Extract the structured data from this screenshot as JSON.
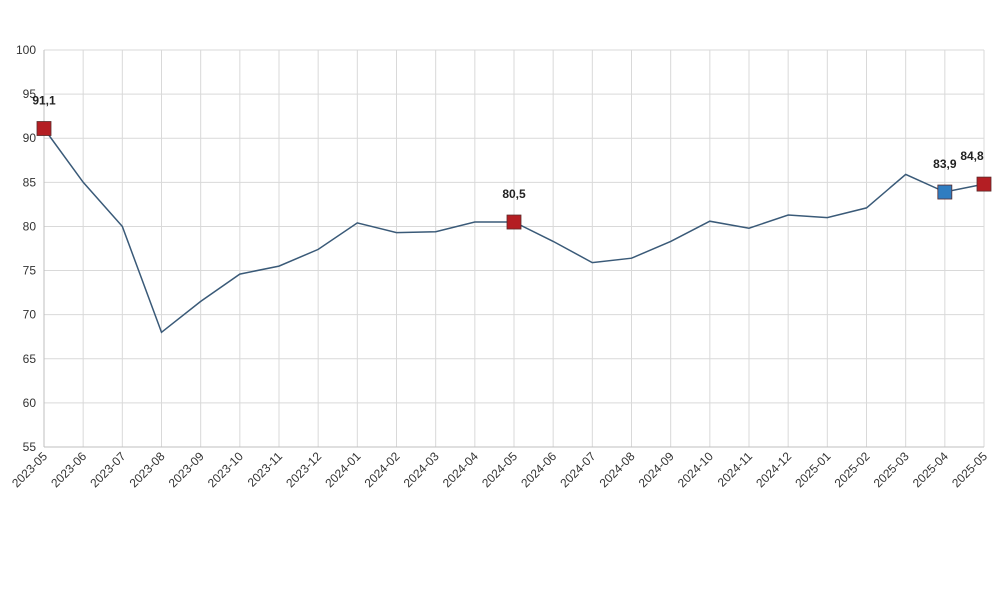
{
  "chart_data": {
    "type": "line",
    "title": "",
    "xlabel": "",
    "ylabel": "",
    "ylim": [
      55,
      100
    ],
    "yticks": [
      55,
      60,
      65,
      70,
      75,
      80,
      85,
      90,
      95,
      100
    ],
    "grid": true,
    "categories": [
      "2023-05",
      "2023-06",
      "2023-07",
      "2023-08",
      "2023-09",
      "2023-10",
      "2023-11",
      "2023-12",
      "2024-01",
      "2024-02",
      "2024-03",
      "2024-04",
      "2024-05",
      "2024-06",
      "2024-07",
      "2024-08",
      "2024-09",
      "2024-10",
      "2024-11",
      "2024-12",
      "2025-01",
      "2025-02",
      "2025-03",
      "2025-04",
      "2025-05"
    ],
    "series": [
      {
        "values": [
          91.1,
          85.0,
          80.0,
          68.0,
          71.5,
          74.6,
          75.5,
          77.4,
          80.4,
          79.3,
          79.4,
          80.5,
          80.5,
          78.3,
          75.9,
          76.4,
          78.3,
          80.6,
          79.8,
          81.3,
          81.0,
          82.1,
          85.9,
          83.9,
          84.8
        ],
        "color": "#3a5a78"
      }
    ],
    "highlights": [
      {
        "category": "2023-05",
        "value": 91.1,
        "label": "91,1",
        "color": "#b41e23"
      },
      {
        "category": "2024-05",
        "value": 80.5,
        "label": "80,5",
        "color": "#b41e23"
      },
      {
        "category": "2025-04",
        "value": 83.9,
        "label": "83,9",
        "color": "#2f7dc1"
      },
      {
        "category": "2025-05",
        "value": 84.8,
        "label": "84,8",
        "color": "#b41e23"
      }
    ]
  }
}
